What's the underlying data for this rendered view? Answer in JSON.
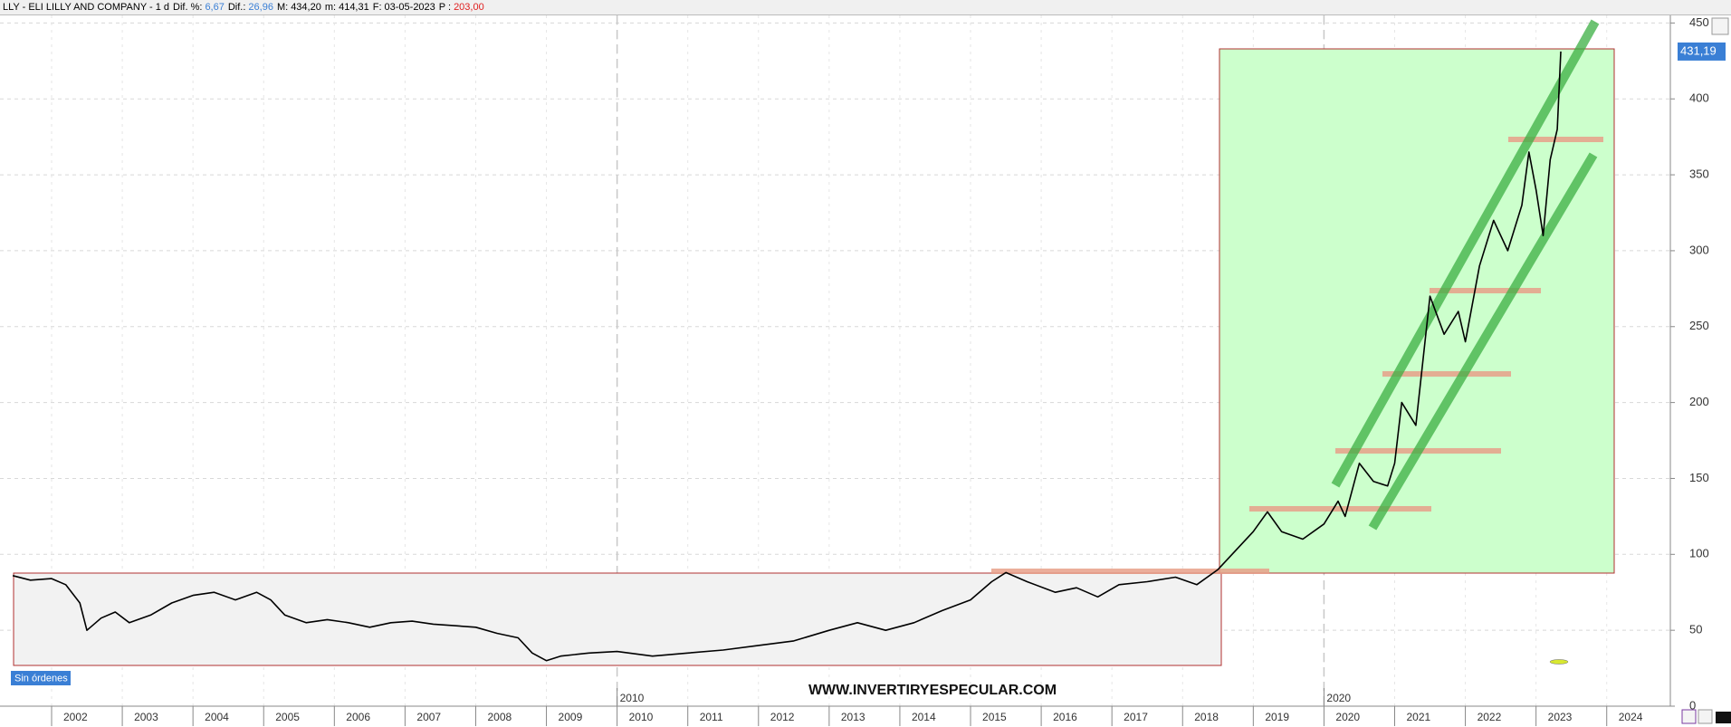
{
  "chart_data": {
    "type": "line",
    "title": "LLY - ELI LILLY AND COMPANY -  1 d",
    "stats": [
      {
        "label": "Dif. %:",
        "value": "6,67",
        "color": "#3a7fd5"
      },
      {
        "label": "Dif.:",
        "value": "26,96",
        "color": "#3a7fd5"
      },
      {
        "label": "M:",
        "value": "434,20",
        "color": "#000000"
      },
      {
        "label": "m:",
        "value": "414,31",
        "color": "#000000"
      },
      {
        "label": "F:",
        "value": "03-05-2023",
        "color": "#000000"
      },
      {
        "label": "P :",
        "value": "203,00",
        "color": "#e02020"
      }
    ],
    "x": [
      2001.45,
      2001.7,
      2002.0,
      2002.2,
      2002.4,
      2002.5,
      2002.7,
      2002.9,
      2003.1,
      2003.4,
      2003.7,
      2004.0,
      2004.3,
      2004.6,
      2004.9,
      2005.1,
      2005.3,
      2005.6,
      2005.9,
      2006.2,
      2006.5,
      2006.8,
      2007.1,
      2007.4,
      2007.7,
      2008.0,
      2008.3,
      2008.6,
      2008.8,
      2009.0,
      2009.2,
      2009.6,
      2010.0,
      2010.5,
      2011.0,
      2011.5,
      2012.0,
      2012.5,
      2013.0,
      2013.4,
      2013.8,
      2014.2,
      2014.6,
      2015.0,
      2015.3,
      2015.5,
      2015.8,
      2016.2,
      2016.5,
      2016.8,
      2017.1,
      2017.5,
      2017.9,
      2018.2,
      2018.5,
      2018.8,
      2019.0,
      2019.2,
      2019.4,
      2019.7,
      2020.0,
      2020.2,
      2020.3,
      2020.5,
      2020.7,
      2020.9,
      2021.0,
      2021.1,
      2021.3,
      2021.5,
      2021.7,
      2021.9,
      2022.0,
      2022.2,
      2022.4,
      2022.6,
      2022.8,
      2022.9,
      2023.0,
      2023.1,
      2023.2,
      2023.3,
      2023.35
    ],
    "values": [
      86,
      83,
      84,
      80,
      68,
      50,
      58,
      62,
      55,
      60,
      68,
      73,
      75,
      70,
      75,
      70,
      60,
      55,
      57,
      55,
      52,
      55,
      56,
      54,
      53,
      52,
      48,
      45,
      35,
      30,
      33,
      35,
      36,
      33,
      35,
      37,
      40,
      43,
      50,
      55,
      50,
      55,
      63,
      70,
      82,
      88,
      82,
      75,
      78,
      72,
      80,
      82,
      85,
      80,
      90,
      105,
      115,
      128,
      115,
      110,
      120,
      135,
      125,
      160,
      148,
      145,
      160,
      200,
      185,
      270,
      245,
      260,
      240,
      290,
      320,
      300,
      330,
      365,
      340,
      310,
      360,
      380,
      431.19
    ],
    "color": "#000000",
    "last_value": {
      "value": 431.19,
      "label": "431,19"
    },
    "xlim": [
      2001.27,
      2024.9
    ],
    "xticks": [
      2002,
      2003,
      2004,
      2005,
      2006,
      2007,
      2008,
      2009,
      2010,
      2011,
      2012,
      2013,
      2014,
      2015,
      2016,
      2017,
      2018,
      2019,
      2020,
      2021,
      2022,
      2023,
      2024
    ],
    "xmarkers": [
      2010,
      2020
    ],
    "ylim": [
      0,
      455
    ],
    "yticks": [
      0,
      50,
      100,
      150,
      200,
      250,
      300,
      350,
      400,
      450
    ],
    "grid": true,
    "watermark": "WWW.INVERTIRYESPECULAR.COM",
    "status": "Sin órdenes"
  }
}
